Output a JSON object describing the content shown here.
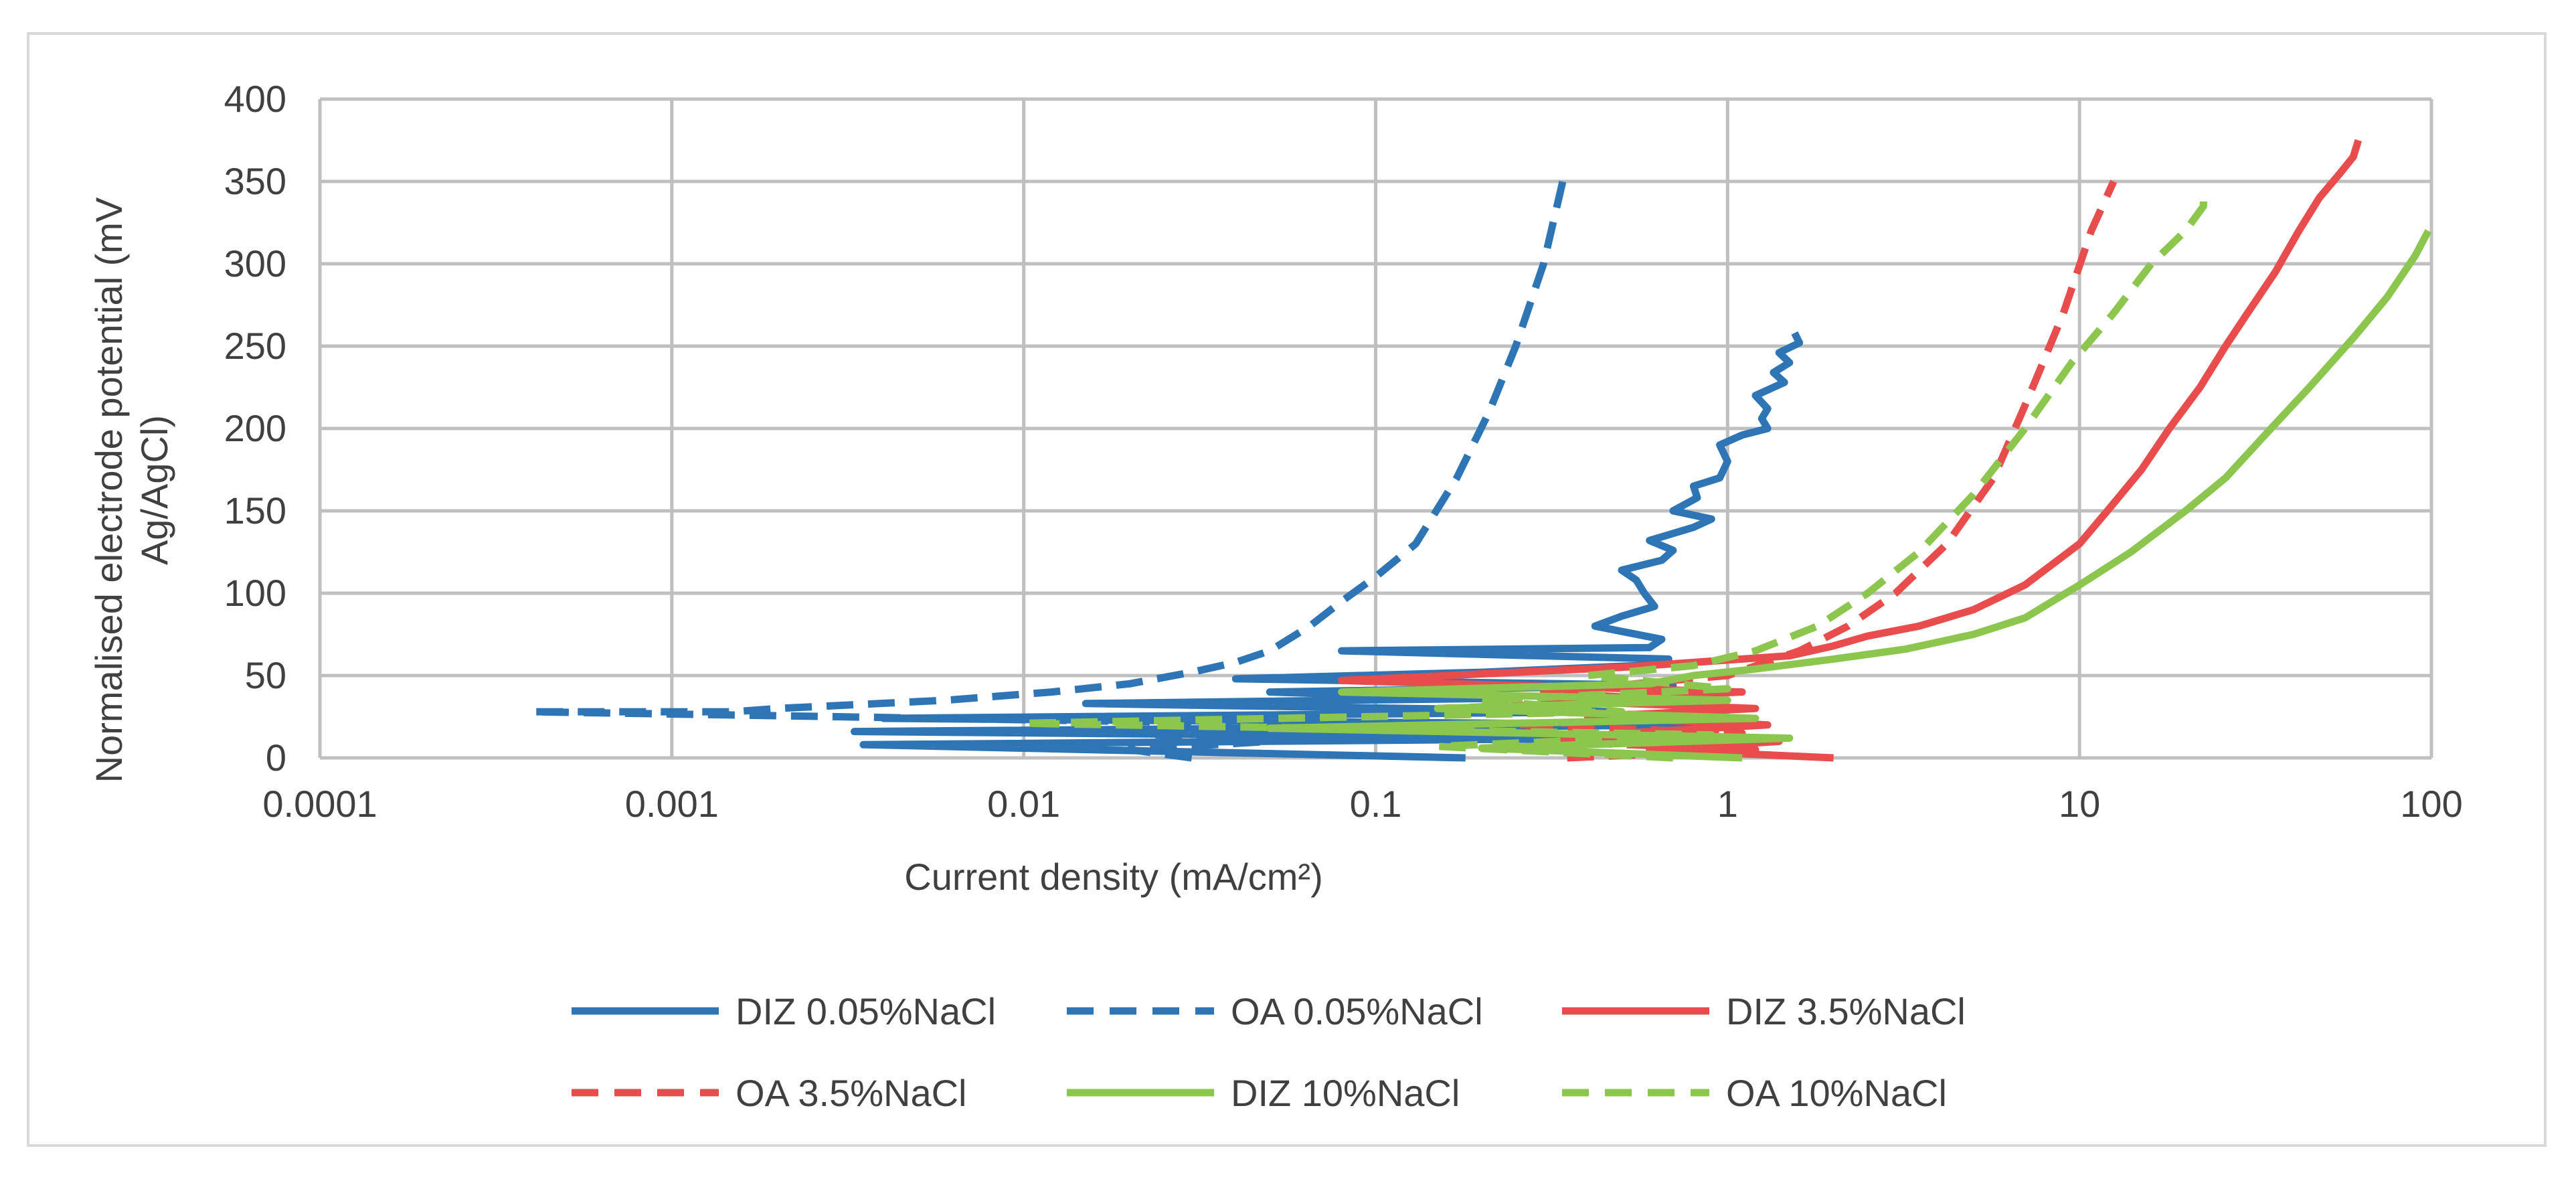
{
  "chart_data": {
    "type": "line",
    "title": "",
    "xlabel": "Current density (mA/cm²)",
    "ylabel_lines": [
      "Normalised electrode potential (mV",
      "Ag/AgCl)"
    ],
    "xscale": "log",
    "xlim": [
      0.0001,
      100
    ],
    "ylim": [
      0,
      400
    ],
    "x_tick_labels": [
      "0.0001",
      "0.001",
      "0.01",
      "0.1",
      "1",
      "10",
      "100"
    ],
    "x_tick_values": [
      0.0001,
      0.001,
      0.01,
      0.1,
      1,
      10,
      100
    ],
    "y_tick_labels": [
      "0",
      "50",
      "100",
      "150",
      "200",
      "250",
      "300",
      "350",
      "400"
    ],
    "y_tick_values": [
      0,
      50,
      100,
      150,
      200,
      250,
      300,
      350,
      400
    ],
    "grid": true,
    "legend_position": "bottom",
    "series": [
      {
        "name": "DIZ 0.05%NaCl",
        "color": "#2e75b6",
        "dash": "solid",
        "x": [
          0.18,
          0.0035,
          0.6,
          0.0033,
          0.9,
          0.004,
          0.5,
          0.015,
          0.2,
          0.05,
          0.7,
          0.04,
          0.2,
          0.55,
          0.68,
          0.08,
          0.6,
          0.65,
          0.42,
          0.5,
          0.62,
          0.58,
          0.55,
          0.5,
          0.65,
          0.7,
          0.6,
          0.8,
          0.9,
          0.7,
          0.82,
          0.8,
          0.95,
          1.0,
          0.95,
          1.1,
          1.3,
          1.25,
          1.3,
          1.2,
          1.45,
          1.35,
          1.5,
          1.4,
          1.6,
          1.55
        ],
        "y": [
          0,
          8,
          12,
          16,
          20,
          24,
          28,
          33,
          36,
          40,
          44,
          48,
          52,
          56,
          60,
          65,
          67,
          72,
          80,
          86,
          92,
          100,
          108,
          114,
          120,
          126,
          132,
          140,
          145,
          150,
          158,
          165,
          170,
          180,
          190,
          196,
          200,
          206,
          212,
          220,
          228,
          234,
          240,
          246,
          252,
          258
        ]
      },
      {
        "name": "OA 0.05%NaCl",
        "color": "#2e75b6",
        "dash": "dashed",
        "x": [
          0.03,
          0.02,
          0.05,
          0.02,
          0.08,
          0.0004,
          0.0008,
          0.0015,
          0.002,
          0.006,
          0.012,
          0.02,
          0.03,
          0.04,
          0.05,
          0.065,
          0.08,
          0.1,
          0.13,
          0.17,
          0.21,
          0.25,
          0.3,
          0.34
        ],
        "y": [
          0,
          5,
          10,
          15,
          20,
          28,
          28,
          28,
          30,
          35,
          40,
          45,
          52,
          58,
          65,
          80,
          95,
          110,
          130,
          170,
          210,
          250,
          300,
          350
        ]
      },
      {
        "name": "DIZ 3.5%NaCl",
        "color": "#e84c4c",
        "dash": "solid",
        "x": [
          2.0,
          0.6,
          1.4,
          0.5,
          1.3,
          0.4,
          1.2,
          0.3,
          1.1,
          0.08,
          0.5,
          1.5,
          2.0,
          2.5,
          3.5,
          5.0,
          7.0,
          10,
          12,
          15,
          18,
          22,
          26,
          30,
          36,
          42,
          48,
          55,
          60,
          62
        ],
        "y": [
          0,
          5,
          10,
          15,
          20,
          25,
          30,
          35,
          40,
          47,
          55,
          62,
          68,
          74,
          80,
          90,
          105,
          130,
          150,
          175,
          200,
          225,
          250,
          270,
          295,
          320,
          340,
          355,
          365,
          375
        ]
      },
      {
        "name": "OA 3.5%NaCl",
        "color": "#e84c4c",
        "dash": "dashed",
        "x": [
          0.35,
          1.2,
          0.3,
          1.1,
          0.25,
          0.9,
          0.15,
          0.7,
          0.3,
          1.0,
          1.6,
          2.2,
          3.0,
          4.2,
          5.7,
          7.2,
          9.0,
          10.8,
          12.5
        ],
        "y": [
          0,
          5,
          10,
          15,
          20,
          25,
          30,
          35,
          40,
          50,
          65,
          80,
          100,
          130,
          170,
          220,
          270,
          320,
          350
        ]
      },
      {
        "name": "DIZ 10%NaCl",
        "color": "#8dc64f",
        "dash": "solid",
        "x": [
          1.1,
          0.2,
          1.5,
          0.05,
          1.2,
          0.15,
          1.0,
          0.08,
          0.6,
          0.8,
          1.2,
          2.0,
          3.2,
          5.0,
          7.0,
          10,
          14,
          20,
          26,
          35,
          45,
          60,
          75,
          90,
          98
        ],
        "y": [
          0,
          6,
          12,
          18,
          24,
          30,
          35,
          40,
          45,
          50,
          54,
          60,
          66,
          75,
          85,
          105,
          125,
          150,
          170,
          200,
          225,
          255,
          280,
          305,
          320
        ]
      },
      {
        "name": "OA 10%NaCl",
        "color": "#8dc64f",
        "dash": "dashed",
        "x": [
          0.7,
          0.15,
          0.9,
          0.01,
          0.5,
          0.2,
          1.0,
          0.4,
          0.8,
          1.2,
          1.8,
          2.5,
          3.5,
          5.0,
          7.0,
          9.5,
          12.5,
          16,
          20,
          22.5,
          22.5
        ],
        "y": [
          0,
          7,
          14,
          21,
          28,
          35,
          42,
          50,
          56,
          65,
          80,
          100,
          125,
          160,
          200,
          240,
          270,
          300,
          320,
          335,
          340
        ]
      }
    ]
  }
}
